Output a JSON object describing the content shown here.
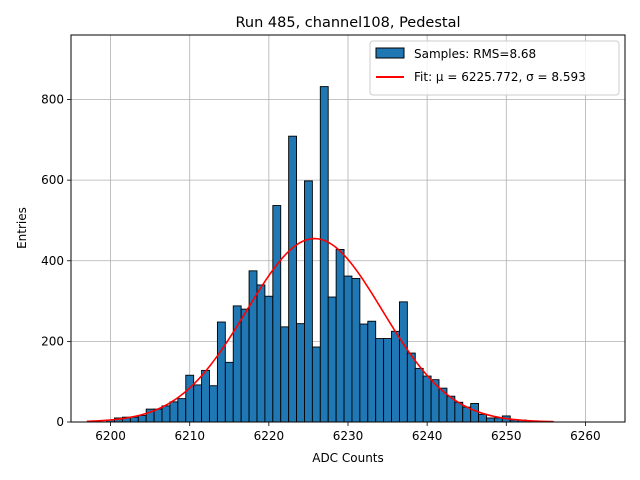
{
  "chart_data": {
    "type": "bar",
    "title": "Run 485, channel108, Pedestal",
    "xlabel": "ADC Counts",
    "ylabel": "Entries",
    "xlim": [
      6195,
      6265
    ],
    "ylim": [
      0,
      960
    ],
    "xticks": [
      6200,
      6210,
      6220,
      6230,
      6240,
      6250,
      6260
    ],
    "yticks": [
      0,
      200,
      400,
      600,
      800
    ],
    "grid": true,
    "legend_position": "top-right",
    "bin_width": 1,
    "series": [
      {
        "name": "Samples: RMS=8.68",
        "kind": "histogram",
        "color": "#1f77b4",
        "edge_color": "#000000",
        "x": [
          6200,
          6201,
          6202,
          6203,
          6204,
          6205,
          6206,
          6207,
          6208,
          6209,
          6210,
          6211,
          6212,
          6213,
          6214,
          6215,
          6216,
          6217,
          6218,
          6219,
          6220,
          6221,
          6222,
          6223,
          6224,
          6225,
          6226,
          6227,
          6228,
          6229,
          6230,
          6231,
          6232,
          6233,
          6234,
          6235,
          6236,
          6237,
          6238,
          6239,
          6240,
          6241,
          6242,
          6243,
          6244,
          6245,
          6246,
          6247,
          6248,
          6249,
          6250,
          6251,
          6252
        ],
        "values": [
          5,
          10,
          12,
          12,
          16,
          32,
          32,
          40,
          50,
          58,
          116,
          92,
          128,
          90,
          248,
          148,
          288,
          280,
          375,
          340,
          312,
          537,
          236,
          709,
          244,
          598,
          186,
          832,
          310,
          428,
          362,
          356,
          243,
          250,
          207,
          207,
          225,
          298,
          171,
          133,
          114,
          105,
          84,
          64,
          49,
          37,
          46,
          19,
          10,
          10,
          15,
          5,
          5
        ]
      },
      {
        "name": "Fit: μ = 6225.772, σ = 8.593",
        "kind": "gaussian",
        "color": "#ff0000",
        "mu": 6225.772,
        "sigma": 8.593,
        "amplitude": 455,
        "x_range": [
          6197,
          6256
        ]
      }
    ]
  }
}
